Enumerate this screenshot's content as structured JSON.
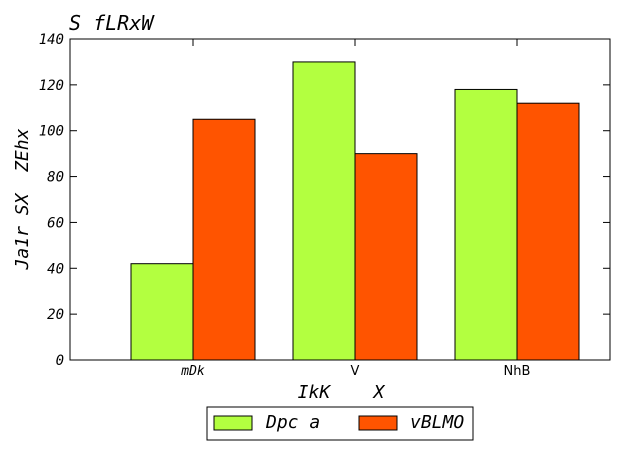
{
  "chart_data": {
    "type": "bar",
    "title": "S fLRxW",
    "xlabel": "IkK    X",
    "ylabel": "Ja1r SX  ZEhx",
    "categories": [
      "mDk",
      "V",
      "NhB"
    ],
    "series": [
      {
        "name": "Dpc a",
        "values": [
          42,
          130,
          118
        ],
        "color": "#b3ff40"
      },
      {
        "name": "vBLMO",
        "values": [
          105,
          90,
          112
        ],
        "color": "#ff5400"
      }
    ],
    "ylim": [
      0,
      140
    ],
    "yticks": [
      0,
      20,
      40,
      60,
      80,
      100,
      120,
      140
    ],
    "grid": false,
    "legend_position": "bottom-center"
  }
}
